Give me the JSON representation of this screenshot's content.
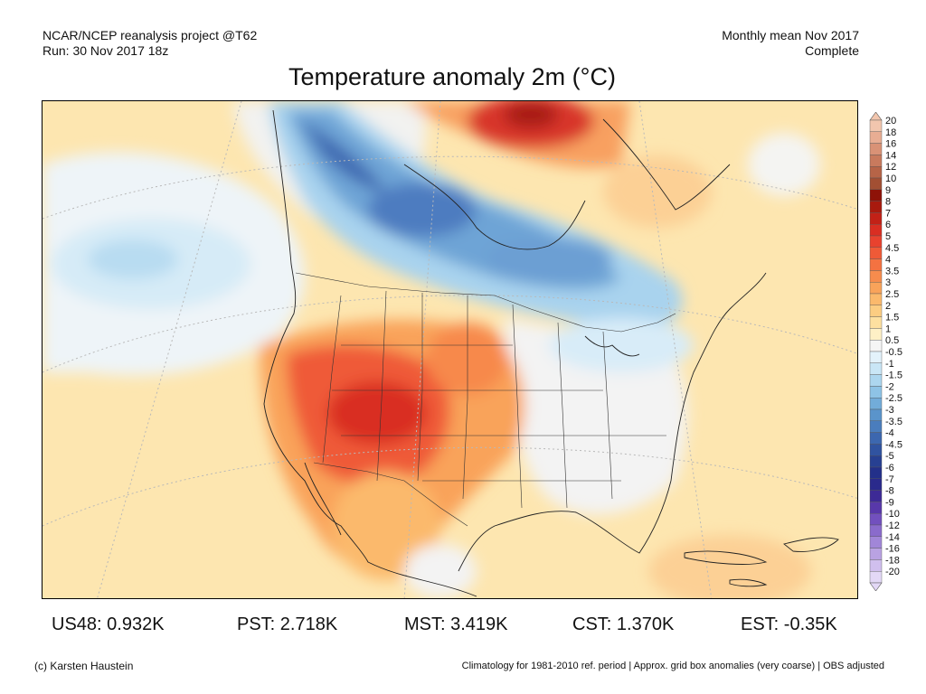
{
  "header": {
    "source_line1": "NCAR/NCEP reanalysis project @T62",
    "source_line2": "Run: 30 Nov 2017 18z",
    "period_line1": "Monthly mean Nov 2017",
    "period_line2": "Complete"
  },
  "title": "Temperature anomaly 2m (°C)",
  "colorbar": {
    "levels": [
      {
        "label": "20",
        "color": "#f2c6ae"
      },
      {
        "label": "18",
        "color": "#e8ad93"
      },
      {
        "label": "16",
        "color": "#d99276"
      },
      {
        "label": "14",
        "color": "#c87a5d"
      },
      {
        "label": "12",
        "color": "#b66447"
      },
      {
        "label": "10",
        "color": "#a24f33"
      },
      {
        "label": "9",
        "color": "#8e1208"
      },
      {
        "label": "8",
        "color": "#a81a0e"
      },
      {
        "label": "7",
        "color": "#c22117"
      },
      {
        "label": "6",
        "color": "#d92e22"
      },
      {
        "label": "5",
        "color": "#e8422e"
      },
      {
        "label": "4.5",
        "color": "#ef5a37"
      },
      {
        "label": "4",
        "color": "#f47241"
      },
      {
        "label": "3.5",
        "color": "#f78c4d"
      },
      {
        "label": "3",
        "color": "#f9a35a"
      },
      {
        "label": "2.5",
        "color": "#fbb96c"
      },
      {
        "label": "2",
        "color": "#fccd82"
      },
      {
        "label": "1.5",
        "color": "#fde0a0"
      },
      {
        "label": "1",
        "color": "#fef0c6"
      },
      {
        "label": "0.5",
        "color": "#f5f5f5"
      },
      {
        "label": "-0.5",
        "color": "#e3f2fb"
      },
      {
        "label": "-1",
        "color": "#c9e6f6"
      },
      {
        "label": "-1.5",
        "color": "#acd6ef"
      },
      {
        "label": "-2",
        "color": "#8ec3e6"
      },
      {
        "label": "-2.5",
        "color": "#72acd9"
      },
      {
        "label": "-3",
        "color": "#5a94cb"
      },
      {
        "label": "-3.5",
        "color": "#4a7dbd"
      },
      {
        "label": "-4",
        "color": "#3c67af"
      },
      {
        "label": "-4.5",
        "color": "#3053a0"
      },
      {
        "label": "-5",
        "color": "#274092"
      },
      {
        "label": "-6",
        "color": "#23308a"
      },
      {
        "label": "-7",
        "color": "#2a2a8c"
      },
      {
        "label": "-8",
        "color": "#3d2a96"
      },
      {
        "label": "-9",
        "color": "#5838aa"
      },
      {
        "label": "-10",
        "color": "#7250be"
      },
      {
        "label": "-12",
        "color": "#8a6bcc"
      },
      {
        "label": "-14",
        "color": "#a186d8"
      },
      {
        "label": "-16",
        "color": "#b9a2e2"
      },
      {
        "label": "-18",
        "color": "#d0bfee"
      },
      {
        "label": "-20",
        "color": "#e3d8f6"
      }
    ]
  },
  "stats": {
    "us48": "US48: 0.932K",
    "pst": "PST: 2.718K",
    "mst": "MST: 3.419K",
    "cst": "CST: 1.370K",
    "est": "EST: -0.35K"
  },
  "footer": {
    "credit": "(c) Karsten Haustein",
    "note": "Climatology for 1981-2010 ref. period | Approx. grid box anomalies (very coarse) | OBS adjusted"
  }
}
